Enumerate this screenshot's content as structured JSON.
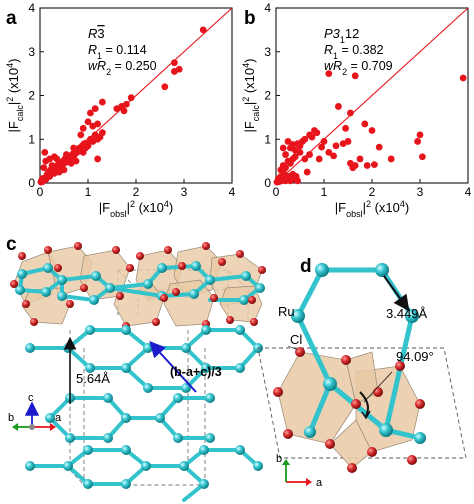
{
  "figure": {
    "panels": {
      "a": {
        "letter": "a"
      },
      "b": {
        "letter": "b"
      },
      "c": {
        "letter": "c"
      },
      "d": {
        "letter": "d"
      }
    },
    "axis_labels": {
      "x_main": "|F",
      "x_sub": "obsl",
      "x_tail": "|",
      "x_sup": "2",
      "x_unit": " (x10",
      "x_unit_sup": "4",
      "x_unit_end": ")",
      "y_main": "|F",
      "y_sub": "calc",
      "y_tail": "|",
      "y_sup": "2",
      "y_unit": " (x10",
      "y_unit_sup": "4",
      "y_unit_end": ")"
    },
    "structure_c": {
      "height_label": "5.64Å",
      "vector_label": "(b-a+c)/3",
      "axes": {
        "a": "a",
        "b": "b",
        "c": "c"
      }
    },
    "structure_d": {
      "ru_label": "Ru",
      "cl_label": "Cl",
      "distance_label": "3.449Å",
      "angle_label": "94.09°",
      "axes": {
        "a": "a",
        "b": "b"
      }
    },
    "colors": {
      "data_red": "#e8141c",
      "fit_line": "#e8141c",
      "ru_cyan": "#33c3cc",
      "cl_red": "#c42222",
      "octa_fill": "#e9c9a5",
      "arrow_blue": "#1c1ccc"
    }
  },
  "chart_data": [
    {
      "type": "scatter",
      "panel": "a",
      "space_group": {
        "main": "R",
        "bar": "3"
      },
      "stats": [
        {
          "sym": "R",
          "sub": "1",
          "text": " = 0.114"
        },
        {
          "sym": "wR",
          "sub": "2",
          "text": " = 0.250"
        }
      ],
      "xlim": [
        0,
        4
      ],
      "ylim": [
        0,
        4
      ],
      "xticks": [
        0,
        1,
        2,
        3,
        4
      ],
      "yticks": [
        0,
        1,
        2,
        3,
        4
      ],
      "fit_line": [
        [
          0,
          0
        ],
        [
          4,
          4
        ]
      ],
      "points": [
        [
          0.02,
          0.02
        ],
        [
          0.03,
          0.05
        ],
        [
          0.05,
          0.03
        ],
        [
          0.05,
          0.1
        ],
        [
          0.08,
          0.06
        ],
        [
          0.1,
          0.12
        ],
        [
          0.12,
          0.08
        ],
        [
          0.15,
          0.2
        ],
        [
          0.18,
          0.25
        ],
        [
          0.2,
          0.15
        ],
        [
          0.22,
          0.3
        ],
        [
          0.25,
          0.28
        ],
        [
          0.28,
          0.35
        ],
        [
          0.3,
          0.22
        ],
        [
          0.32,
          0.38
        ],
        [
          0.35,
          0.3
        ],
        [
          0.38,
          0.42
        ],
        [
          0.4,
          0.36
        ],
        [
          0.42,
          0.45
        ],
        [
          0.45,
          0.4
        ],
        [
          0.48,
          0.5
        ],
        [
          0.5,
          0.45
        ],
        [
          0.52,
          0.55
        ],
        [
          0.55,
          0.48
        ],
        [
          0.58,
          0.6
        ],
        [
          0.6,
          0.55
        ],
        [
          0.62,
          0.58
        ],
        [
          0.65,
          0.62
        ],
        [
          0.68,
          0.66
        ],
        [
          0.7,
          0.6
        ],
        [
          0.72,
          0.7
        ],
        [
          0.75,
          0.68
        ],
        [
          0.78,
          0.75
        ],
        [
          0.8,
          0.72
        ],
        [
          0.82,
          0.8
        ],
        [
          0.85,
          0.78
        ],
        [
          0.88,
          0.85
        ],
        [
          0.9,
          0.7
        ],
        [
          0.92,
          0.9
        ],
        [
          0.95,
          0.8
        ],
        [
          0.98,
          0.92
        ],
        [
          1.0,
          0.85
        ],
        [
          1.05,
          1.0
        ],
        [
          1.1,
          0.95
        ],
        [
          1.15,
          1.1
        ],
        [
          1.2,
          1.0
        ],
        [
          1.25,
          1.05
        ],
        [
          1.3,
          1.15
        ],
        [
          1.1,
          1.3
        ],
        [
          1.2,
          1.35
        ],
        [
          1.0,
          1.4
        ],
        [
          1.05,
          1.6
        ],
        [
          1.15,
          1.7
        ],
        [
          1.3,
          1.85
        ],
        [
          0.9,
          1.25
        ],
        [
          0.85,
          1.1
        ],
        [
          0.1,
          0.7
        ],
        [
          0.12,
          0.5
        ],
        [
          0.08,
          0.35
        ],
        [
          0.2,
          0.55
        ],
        [
          0.3,
          0.6
        ],
        [
          0.25,
          0.4
        ],
        [
          0.4,
          0.25
        ],
        [
          0.35,
          0.55
        ],
        [
          0.5,
          0.3
        ],
        [
          0.55,
          0.65
        ],
        [
          0.65,
          0.45
        ],
        [
          0.7,
          0.8
        ],
        [
          0.75,
          0.5
        ],
        [
          1.2,
          0.55
        ],
        [
          1.6,
          1.7
        ],
        [
          1.7,
          1.75
        ],
        [
          1.8,
          1.8
        ],
        [
          1.75,
          1.65
        ],
        [
          1.9,
          1.95
        ],
        [
          2.6,
          2.2
        ],
        [
          2.8,
          2.55
        ],
        [
          2.8,
          2.75
        ],
        [
          3.4,
          3.5
        ],
        [
          2.9,
          2.6
        ]
      ]
    },
    {
      "type": "scatter",
      "panel": "b",
      "space_group": {
        "main": "P3",
        "sub": "1",
        "tail": "12"
      },
      "stats": [
        {
          "sym": "R",
          "sub": "1",
          "text": " = 0.382"
        },
        {
          "sym": "wR",
          "sub": "2",
          "text": " = 0.709"
        }
      ],
      "xlim": [
        0,
        4
      ],
      "ylim": [
        0,
        4
      ],
      "xticks": [
        0,
        1,
        2,
        3,
        4
      ],
      "yticks": [
        0,
        1,
        2,
        3,
        4
      ],
      "fit_line": [
        [
          0,
          0
        ],
        [
          4,
          4
        ]
      ],
      "points": [
        [
          0.02,
          0.02
        ],
        [
          0.04,
          0.05
        ],
        [
          0.06,
          0.03
        ],
        [
          0.05,
          0.1
        ],
        [
          0.08,
          0.08
        ],
        [
          0.1,
          0.15
        ],
        [
          0.12,
          0.05
        ],
        [
          0.15,
          0.1
        ],
        [
          0.18,
          0.2
        ],
        [
          0.2,
          0.05
        ],
        [
          0.22,
          0.12
        ],
        [
          0.25,
          0.08
        ],
        [
          0.28,
          0.15
        ],
        [
          0.3,
          0.05
        ],
        [
          0.32,
          0.1
        ],
        [
          0.35,
          0.2
        ],
        [
          0.38,
          0.12
        ],
        [
          0.4,
          0.08
        ],
        [
          0.42,
          0.15
        ],
        [
          0.45,
          0.05
        ],
        [
          0.1,
          0.3
        ],
        [
          0.15,
          0.4
        ],
        [
          0.2,
          0.35
        ],
        [
          0.25,
          0.5
        ],
        [
          0.3,
          0.45
        ],
        [
          0.35,
          0.55
        ],
        [
          0.4,
          0.6
        ],
        [
          0.2,
          0.65
        ],
        [
          0.3,
          0.8
        ],
        [
          0.4,
          0.75
        ],
        [
          0.45,
          0.9
        ],
        [
          0.5,
          0.85
        ],
        [
          0.55,
          0.95
        ],
        [
          0.6,
          1.0
        ],
        [
          0.7,
          1.1
        ],
        [
          0.75,
          1.05
        ],
        [
          0.8,
          1.2
        ],
        [
          0.85,
          1.15
        ],
        [
          0.5,
          0.7
        ],
        [
          0.6,
          0.55
        ],
        [
          0.7,
          0.65
        ],
        [
          0.15,
          0.8
        ],
        [
          0.25,
          0.95
        ],
        [
          0.35,
          0.88
        ],
        [
          0.95,
          0.82
        ],
        [
          1.0,
          0.95
        ],
        [
          1.1,
          0.7
        ],
        [
          1.2,
          0.62
        ],
        [
          1.25,
          0.85
        ],
        [
          1.4,
          0.9
        ],
        [
          1.5,
          0.95
        ],
        [
          1.55,
          0.45
        ],
        [
          1.6,
          0.35
        ],
        [
          1.65,
          0.4
        ],
        [
          1.75,
          0.55
        ],
        [
          1.9,
          0.4
        ],
        [
          2.05,
          0.42
        ],
        [
          2.15,
          0.82
        ],
        [
          2.4,
          0.55
        ],
        [
          2.95,
          0.95
        ],
        [
          3.0,
          1.1
        ],
        [
          3.05,
          0.6
        ],
        [
          1.3,
          1.75
        ],
        [
          1.55,
          1.6
        ],
        [
          1.65,
          2.45
        ],
        [
          1.1,
          2.5
        ],
        [
          0.9,
          0.55
        ],
        [
          0.65,
          0.25
        ],
        [
          3.9,
          2.4
        ],
        [
          1.85,
          1.35
        ],
        [
          1.45,
          1.25
        ],
        [
          2.0,
          1.2
        ]
      ]
    }
  ]
}
